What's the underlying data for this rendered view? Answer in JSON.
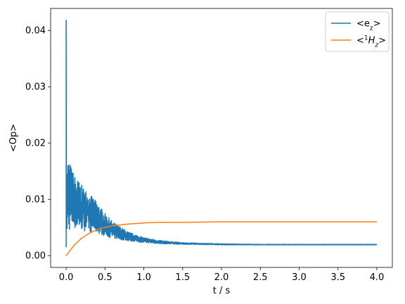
{
  "chart_data": {
    "type": "line",
    "title": "",
    "xlabel": "t / s",
    "ylabel": "<Op>",
    "xlim": [
      -0.2,
      4.2
    ],
    "ylim": [
      -0.0021,
      0.0439
    ],
    "xticks": [
      0.0,
      0.5,
      1.0,
      1.5,
      2.0,
      2.5,
      3.0,
      3.5,
      4.0
    ],
    "xtick_labels": [
      "0.0",
      "0.5",
      "1.0",
      "1.5",
      "2.0",
      "2.5",
      "3.0",
      "3.5",
      "4.0"
    ],
    "yticks": [
      0.0,
      0.01,
      0.02,
      0.03,
      0.04
    ],
    "ytick_labels": [
      "0.00",
      "0.01",
      "0.02",
      "0.03",
      "0.04"
    ],
    "grid": false,
    "legend_position": "top-right",
    "series": [
      {
        "name": "<e_z>",
        "legend_html": "&lt;e<tspan baseline-shift='sub' font-size='9'>z</tspan>&gt;",
        "color": "#1f77b4",
        "description": "noisy decay",
        "x": [
          0.0,
          0.005,
          0.02,
          0.05,
          0.1,
          0.2,
          0.3,
          0.4,
          0.5,
          0.6,
          0.8,
          1.0,
          1.2,
          1.5,
          2.0,
          2.5,
          3.0,
          3.5,
          4.0
        ],
        "y_upper": [
          0.0418,
          0.0135,
          0.0175,
          0.0165,
          0.0145,
          0.0125,
          0.011,
          0.0095,
          0.0075,
          0.006,
          0.0042,
          0.0032,
          0.0027,
          0.0023,
          0.0021,
          0.002,
          0.002,
          0.002,
          0.002
        ],
        "y_lower": [
          0.0015,
          0.0035,
          0.004,
          0.0045,
          0.0048,
          0.0045,
          0.0042,
          0.004,
          0.0035,
          0.003,
          0.0026,
          0.0023,
          0.0021,
          0.002,
          0.0019,
          0.0019,
          0.0019,
          0.0019,
          0.0019
        ]
      },
      {
        "name": "<1H_z>",
        "legend_html": "&lt;<tspan baseline-shift='super' font-size='9'>1</tspan><tspan font-style='italic'>H</tspan><tspan baseline-shift='sub' font-size='9' font-style='italic'>z</tspan>&gt;",
        "color": "#ff7f0e",
        "x": [
          0.0,
          0.1,
          0.2,
          0.3,
          0.4,
          0.5,
          0.6,
          0.8,
          1.0,
          1.2,
          1.5,
          2.0,
          2.5,
          3.0,
          3.5,
          4.0
        ],
        "y": [
          0.0,
          0.0018,
          0.0031,
          0.004,
          0.0046,
          0.005,
          0.0053,
          0.0056,
          0.0058,
          0.0059,
          0.0059,
          0.006,
          0.006,
          0.006,
          0.006,
          0.006
        ]
      }
    ]
  }
}
